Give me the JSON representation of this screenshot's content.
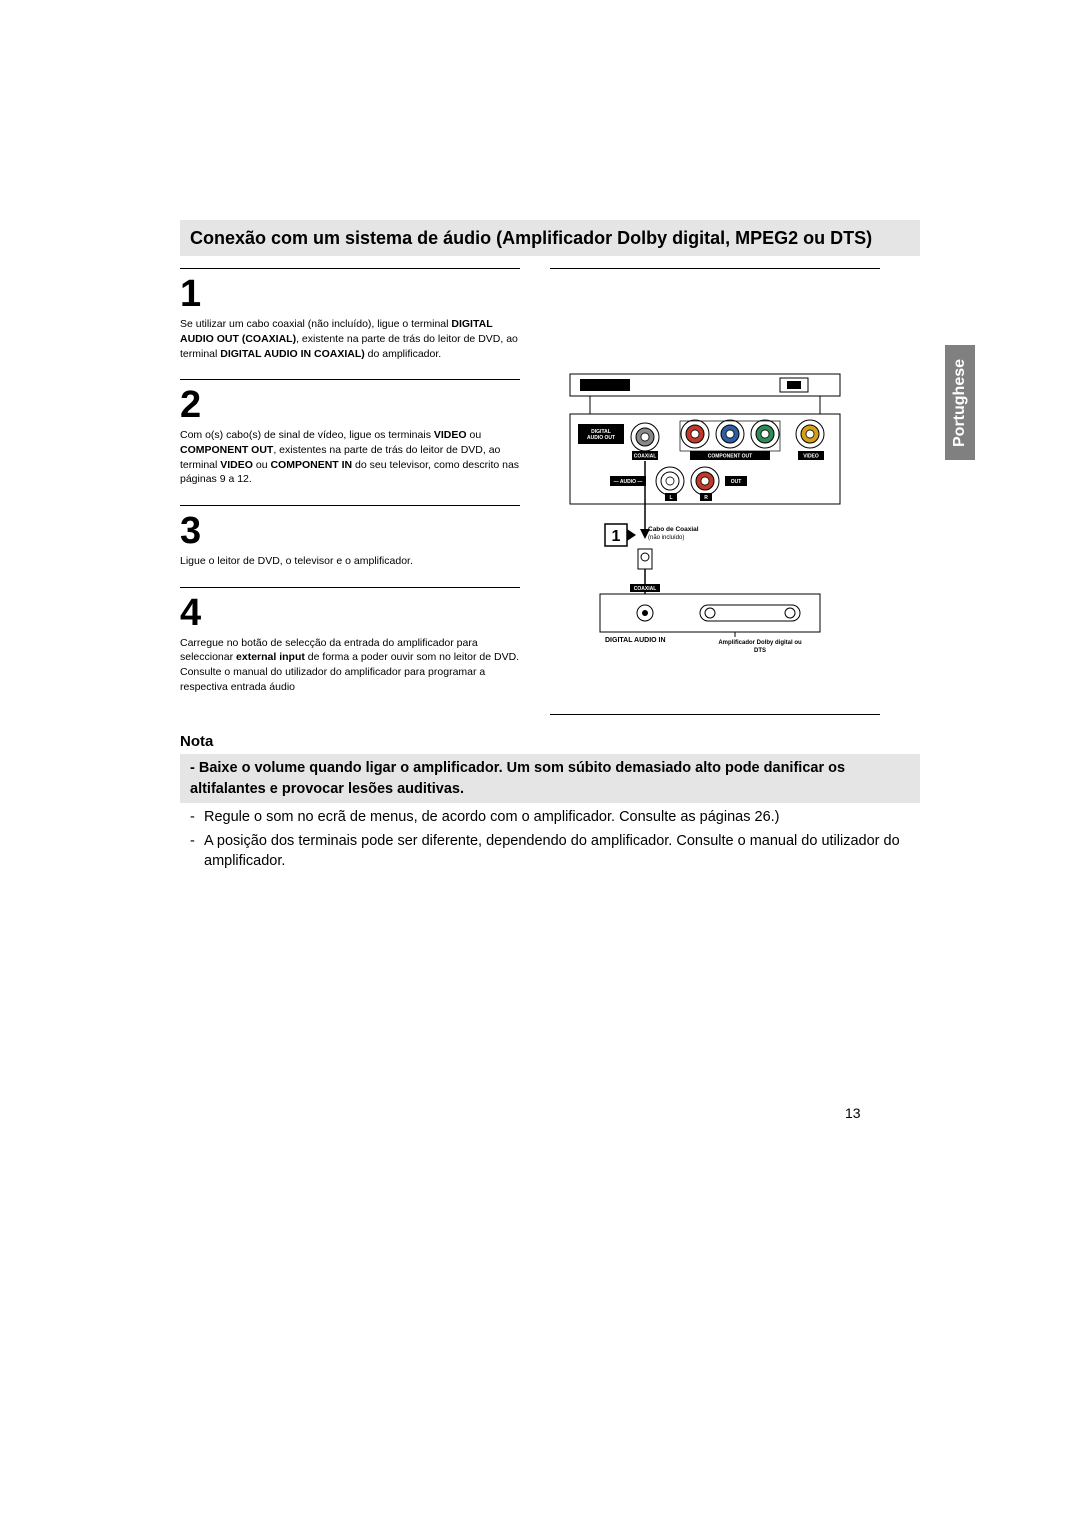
{
  "title": "Conexão com um sistema de áudio (Amplificador Dolby digital, MPEG2 ou DTS)",
  "side_tab": "Portughese",
  "page_number": "13",
  "steps": [
    {
      "num": "1",
      "html": "Se utilizar um cabo coaxial (não incluído), ligue o terminal <b>DIGITAL AUDIO OUT (COAXIAL)</b>, existente na parte de trás do leitor de DVD, ao terminal <b>DIGITAL AUDIO IN COAXIAL)</b> do amplificador."
    },
    {
      "num": "2",
      "html": "Com o(s) cabo(s) de sinal de vídeo, ligue os terminais <b>VIDEO</b> ou <b>COMPONENT OUT</b>, existentes na parte de trás do leitor de DVD, ao terminal <b>VIDEO</b> ou <b>COMPONENT IN</b> do seu televisor, como descrito nas páginas 9 a 12."
    },
    {
      "num": "3",
      "html": "Ligue o leitor de DVD, o televisor e o amplificador."
    },
    {
      "num": "4",
      "html": "Carregue no botão de selecção da entrada do amplificador para seleccionar <b>external input</b> de forma a poder ouvir som no leitor de DVD.<br>Consulte o manual do utilizador do amplificador para programar a respectiva entrada áudio"
    }
  ],
  "nota": {
    "title": "Nota",
    "highlight": "-  Baixe o volume quando ligar o amplificador. Um som súbito demasiado alto pode danificar os altifalantes e provocar lesões auditivas.",
    "items": [
      "Regule o som no ecrã de menus, de acordo com o amplificador. Consulte as páginas 26.)",
      "A posição dos terminais pode ser diferente, dependendo do amplificador. Consulte o manual do utilizador do amplificador."
    ]
  },
  "diagram": {
    "labels": {
      "digital_audio_out": "DIGITAL\nAUDIO OUT",
      "coaxial_top": "COAXIAL",
      "component_out": "COMPONENT OUT",
      "video": "VIDEO",
      "audio": "AUDIO",
      "out": "OUT",
      "l": "L",
      "r": "R",
      "step_marker": "1",
      "cable_title": "Cabo de Coaxial",
      "cable_sub": "(não incluído)",
      "coaxial_bottom": "COAXIAL",
      "digital_audio_in": "DIGITAL AUDIO IN",
      "amp_label": "Amplificador Dolby digital ou\nDTS"
    },
    "colors": {
      "panel_fill": "#ffffff",
      "panel_stroke": "#000000",
      "label_bg": "#000000",
      "label_fg": "#ffffff",
      "jack_red": "#c0392b",
      "jack_blue": "#2e5fa3",
      "jack_green": "#2e8b57",
      "jack_yellow": "#d4a017",
      "jack_white": "#ffffff",
      "jack_gray": "#888888"
    }
  }
}
